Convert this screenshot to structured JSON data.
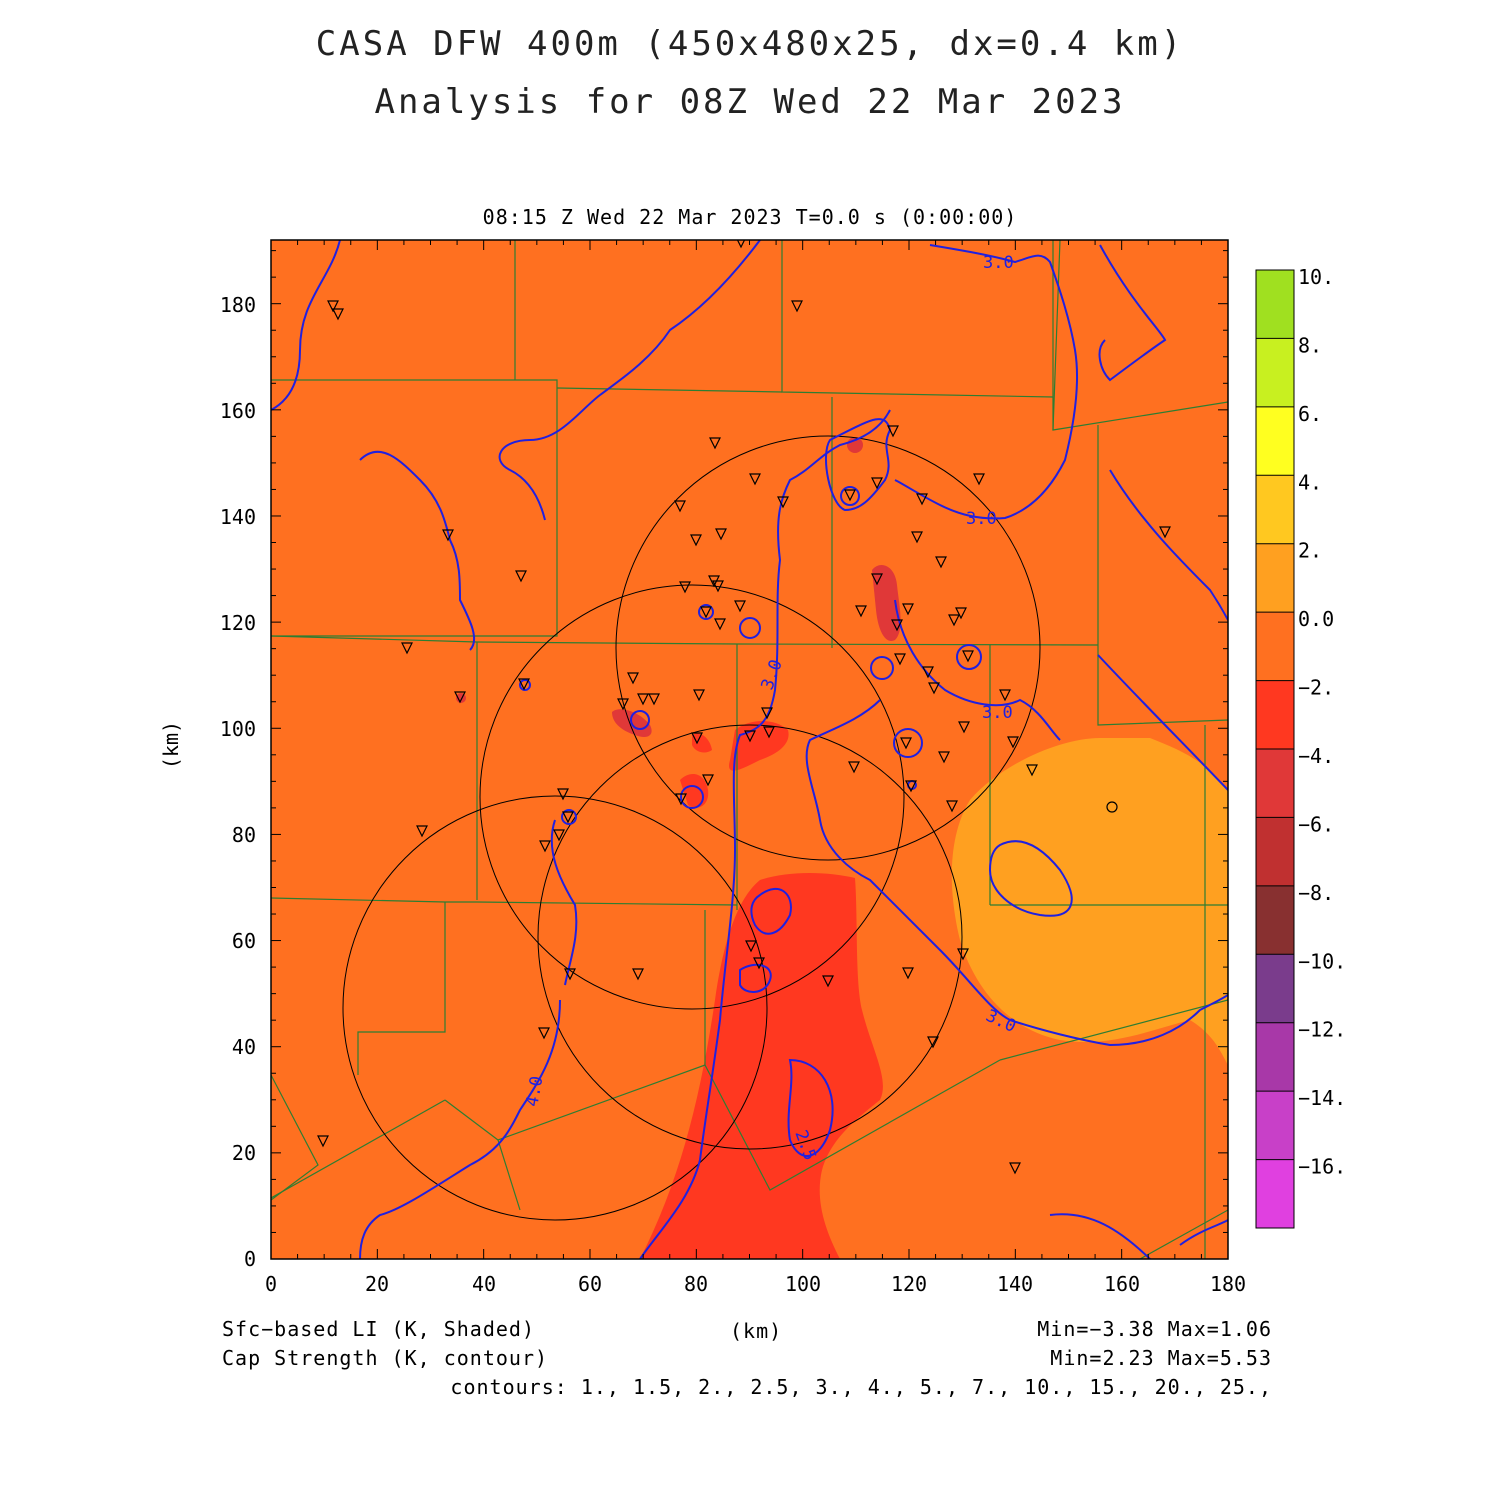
{
  "header": {
    "title_line1": "CASA DFW 400m (450x480x25, dx=0.4 km)",
    "title_line2": "Analysis for 08Z Wed 22 Mar 2023",
    "time_line": "08:15 Z Wed 22 Mar 2023    T=0.0 s (0:00:00)"
  },
  "axes": {
    "x_label": "(km)",
    "y_label": "(km)",
    "x_ticks": [
      "0",
      "20",
      "40",
      "60",
      "80",
      "100",
      "120",
      "140",
      "160",
      "180"
    ],
    "y_ticks": [
      "0",
      "20",
      "40",
      "60",
      "80",
      "100",
      "120",
      "140",
      "160",
      "180"
    ],
    "x_range": [
      0,
      180
    ],
    "y_range": [
      0,
      192
    ]
  },
  "contour_labels": [
    "3.0",
    "3.0",
    "3.0",
    "3.0",
    "3.0",
    "4.0",
    "2.5"
  ],
  "colorbar": {
    "labels": [
      "10.",
      "8.",
      "6.",
      "4.",
      "2.",
      "0.0",
      "−2.",
      "−4.",
      "−6.",
      "−8.",
      "−10.",
      "−12.",
      "−14.",
      "−16."
    ],
    "colors": [
      "#a0e020",
      "#c8f020",
      "#ffff20",
      "#ffc820",
      "#ffa020",
      "#ff7020",
      "#ff3820",
      "#e03838",
      "#c03030",
      "#883030",
      "#7a3c8c",
      "#a838a8",
      "#c840c8",
      "#e040e0"
    ]
  },
  "colors": {
    "field": "#ff7020",
    "negative_region": "#ff3820",
    "positive_region": "#ffa020",
    "contour": "#2020e0",
    "county_lines": "#2e7d32"
  },
  "footer": {
    "left1": "Sfc−based LI (K, Shaded)",
    "left2": "Cap Strength (K, contour)",
    "center": "(km)",
    "right1": "Min=−3.38 Max=1.06",
    "right2": "Min=2.23 Max=5.53",
    "right3": "contours: 1., 1.5, 2., 2.5, 3., 4., 5., 7., 10., 15., 20., 25.,"
  }
}
